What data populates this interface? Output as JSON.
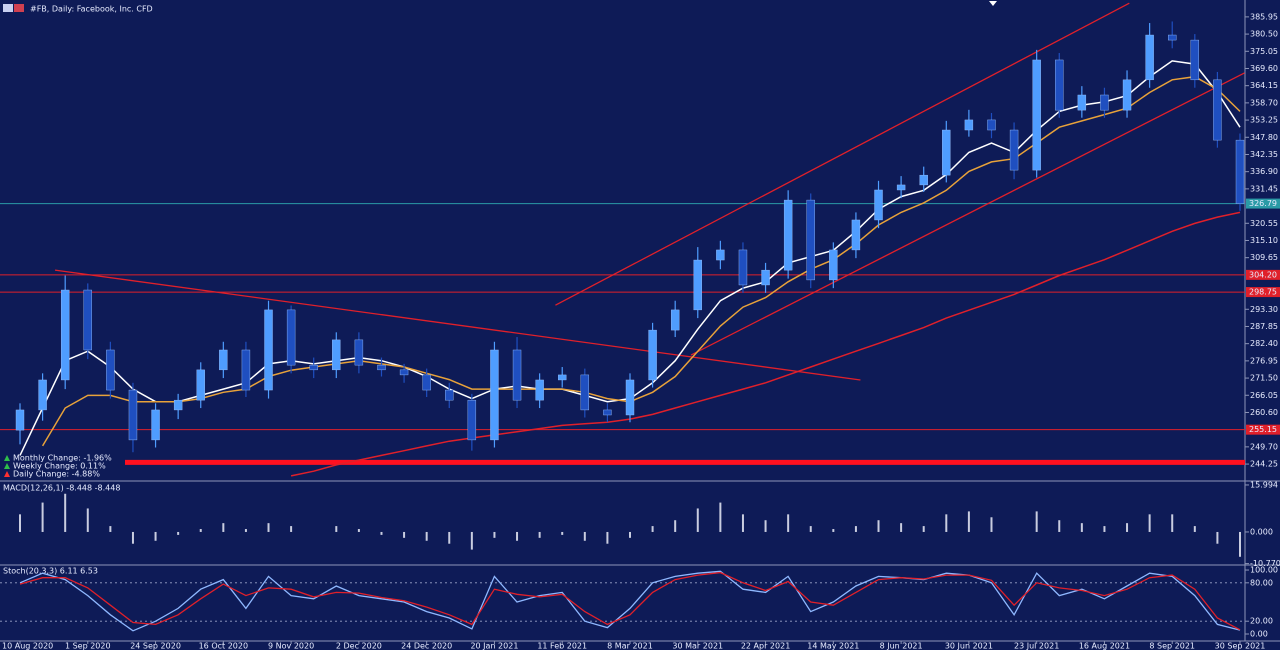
{
  "chart_data": [
    {
      "type": "candlestick",
      "title": "#FB, Daily: Facebook, Inc. CFD",
      "categories": [
        "10 Aug 2020",
        null,
        null,
        "1 Sep 2020",
        null,
        null,
        "24 Sep 2020",
        null,
        null,
        "16 Oct 2020",
        null,
        null,
        "9 Nov 2020",
        null,
        null,
        "2 Dec 2020",
        null,
        null,
        "24 Dec 2020",
        null,
        null,
        "20 Jan 2021",
        null,
        null,
        "11 Feb 2021",
        null,
        null,
        "8 Mar 2021",
        null,
        null,
        "30 Mar 2021",
        null,
        null,
        "22 Apr 2021",
        null,
        null,
        "14 May 2021",
        null,
        null,
        "8 Jun 2021",
        null,
        null,
        "30 Jun 2021",
        null,
        null,
        "23 Jul 2021",
        null,
        null,
        "16 Aug 2021",
        null,
        null,
        "8 Sep 2021",
        null,
        null,
        "30 Sep 2021"
      ],
      "open": [
        255.0,
        261.4,
        270.9,
        299.4,
        280.4,
        267.7,
        251.9,
        261.4,
        264.5,
        274.1,
        280.4,
        267.7,
        293.1,
        275.6,
        274.1,
        283.6,
        275.6,
        274.1,
        272.5,
        267.7,
        264.5,
        251.9,
        280.4,
        264.5,
        270.9,
        272.5,
        261.4,
        259.8,
        270.9,
        286.7,
        293.1,
        308.9,
        312.1,
        301.0,
        305.7,
        327.9,
        302.6,
        312.1,
        321.6,
        331.1,
        332.7,
        335.8,
        350.1,
        353.3,
        350.1,
        337.4,
        372.3,
        356.4,
        361.2,
        356.4,
        366.0,
        380.2,
        378.6,
        366.0,
        346.9
      ],
      "high": [
        263.5,
        273.0,
        304.0,
        301.5,
        283.0,
        270.0,
        263.5,
        266.5,
        276.5,
        283.0,
        283.0,
        296.0,
        294.5,
        278.0,
        286.0,
        286.0,
        278.0,
        276.0,
        274.5,
        270.0,
        266.5,
        283.0,
        284.5,
        273.0,
        275.0,
        274.5,
        263.5,
        273.0,
        289.0,
        296.0,
        313.0,
        315.0,
        314.5,
        308.0,
        331.0,
        330.0,
        314.5,
        324.0,
        334.0,
        335.5,
        338.5,
        353.0,
        356.5,
        355.5,
        352.5,
        375.5,
        374.5,
        364.0,
        363.5,
        369.0,
        384.0,
        384.5,
        380.5,
        368.5,
        349.0
      ],
      "low": [
        250.5,
        258.0,
        268.0,
        277.5,
        265.0,
        248.0,
        249.5,
        258.5,
        262.0,
        271.5,
        265.5,
        265.0,
        273.0,
        271.5,
        271.5,
        273.0,
        272.0,
        270.0,
        265.5,
        262.0,
        248.5,
        249.5,
        262.0,
        262.0,
        268.5,
        259.0,
        257.5,
        257.5,
        268.5,
        284.5,
        290.5,
        306.0,
        298.5,
        298.5,
        303.0,
        300.0,
        300.0,
        309.5,
        319.0,
        328.5,
        330.5,
        333.5,
        348.0,
        347.5,
        334.5,
        335.0,
        354.0,
        354.0,
        354.0,
        354.0,
        363.5,
        376.0,
        363.5,
        344.5,
        324.5
      ],
      "close": [
        261.4,
        270.9,
        299.4,
        280.4,
        267.7,
        251.9,
        261.4,
        264.5,
        274.1,
        280.4,
        267.7,
        293.1,
        275.6,
        274.1,
        283.6,
        275.6,
        274.1,
        272.5,
        267.7,
        264.5,
        251.9,
        280.4,
        264.5,
        270.9,
        272.5,
        261.4,
        259.8,
        270.9,
        286.7,
        293.1,
        308.9,
        312.1,
        301.0,
        305.7,
        327.9,
        302.6,
        312.1,
        321.6,
        331.1,
        332.7,
        335.8,
        350.1,
        353.3,
        350.1,
        337.4,
        372.3,
        356.4,
        361.2,
        356.4,
        366.0,
        380.2,
        378.6,
        366.0,
        346.9,
        326.79
      ],
      "up_color": "#4f9dff",
      "down_color": "#1f4fc0",
      "series": [
        {
          "color": "#ffffff",
          "values": [
            247,
            262,
            277,
            280,
            275,
            268,
            264,
            264,
            266,
            268,
            270,
            276,
            277,
            276,
            277,
            278,
            277,
            275,
            272,
            268,
            265,
            268,
            269,
            268,
            268,
            266,
            264,
            265,
            270,
            277,
            287,
            296,
            300,
            302,
            308,
            310,
            312,
            318,
            325,
            329,
            331,
            336,
            343,
            346,
            343,
            350,
            356,
            358,
            359,
            361,
            367,
            372,
            371,
            362,
            351
          ]
        },
        {
          "color": "#e8a23a",
          "values": [
            null,
            250,
            262,
            266,
            266,
            264,
            264,
            264,
            265,
            267,
            268,
            272,
            274,
            275,
            276,
            277,
            276,
            275,
            273,
            271,
            268,
            268,
            268,
            268,
            268,
            267,
            265,
            264,
            267,
            272,
            280,
            288,
            294,
            297,
            302,
            306,
            309,
            314,
            320,
            324,
            327,
            331,
            337,
            340,
            341,
            346,
            351,
            353,
            355,
            357,
            362,
            366,
            367,
            363,
            356
          ]
        },
        {
          "color": "#e0202a",
          "values": [
            null,
            null,
            null,
            null,
            null,
            null,
            null,
            null,
            null,
            null,
            null,
            null,
            240.5,
            242,
            244,
            245.5,
            247,
            248.5,
            250,
            251.5,
            252.5,
            253.5,
            254.5,
            255.5,
            256.5,
            257,
            257.5,
            258.5,
            260,
            262,
            264,
            266,
            268,
            270,
            272.5,
            275,
            277.5,
            280,
            282.5,
            285,
            287.5,
            290.5,
            293,
            295.5,
            298,
            301,
            304,
            306.5,
            309,
            312,
            315,
            318,
            320.5,
            322.5,
            324
          ]
        }
      ],
      "trendlines": [
        {
          "color": "#e0202a",
          "x": [
            23.7,
            49.1
          ],
          "y": [
            294.6,
            390.3
          ]
        },
        {
          "color": "#e0202a",
          "x": [
            29.7,
            54.2
          ],
          "y": [
            278.8,
            368.2
          ]
        },
        {
          "color": "#e0202a",
          "x": [
            1.55,
            37.2
          ],
          "y": [
            305.7,
            270.9
          ]
        }
      ],
      "levels": [
        {
          "value": 304.2,
          "label": "304.20",
          "color": "#e0202a"
        },
        {
          "value": 298.75,
          "label": "298.75",
          "color": "#e0202a"
        },
        {
          "value": 255.15,
          "label": "255.15",
          "color": "#e0202a"
        }
      ],
      "support": {
        "value": 244.8,
        "color": "#ff1020"
      },
      "current_price": {
        "value": 326.79,
        "color": "#2a9aa6"
      },
      "annotations": [
        {
          "text": "Monthly Change: -1.96%",
          "color": "#2fbf4a"
        },
        {
          "text": "Weekly Change: 0.11%",
          "color": "#2fbf4a"
        },
        {
          "text": "Daily Change: -4.88%",
          "color": "#ff3030"
        }
      ],
      "ylim": [
        239.2,
        391.3
      ],
      "yticks": [
        385.95,
        {
          "value": 380.5,
          "label": "380.50"
        },
        375.05,
        {
          "value": 369.6,
          "label": "369.60"
        },
        364.15,
        {
          "value": 358.7,
          "label": "358.70"
        },
        353.25,
        {
          "value": 347.8,
          "label": "347.80"
        },
        342.35,
        {
          "value": 336.9,
          "label": "336.90"
        },
        331.45,
        320.55,
        {
          "value": 315.1,
          "label": "315.10"
        },
        309.65,
        {
          "value": 293.3,
          "label": "293.30"
        },
        287.85,
        {
          "value": 282.4,
          "label": "282.40"
        },
        276.95,
        {
          "value": 271.5,
          "label": "271.50"
        },
        266.05,
        {
          "value": 260.6,
          "label": "260.60"
        },
        {
          "value": 249.7,
          "label": "249.70"
        },
        244.25
      ]
    },
    {
      "type": "bar",
      "title": "MACD(12,26,1) -8.448 -8.448",
      "color": "#c9cde0",
      "values": [
        6,
        10,
        13,
        8,
        2,
        -4,
        -3,
        -1,
        1,
        3,
        1,
        3,
        2,
        0,
        2,
        1,
        -1,
        -2,
        -3,
        -4,
        -6,
        -2,
        -3,
        -2,
        -1,
        -3,
        -4,
        -2,
        2,
        4,
        8,
        10,
        6,
        4,
        6,
        2,
        1,
        2,
        4,
        3,
        2,
        6,
        7,
        5,
        0,
        7,
        4,
        3,
        2,
        3,
        6,
        6,
        2,
        -4,
        -8.448
      ],
      "ylim": [
        -10.9,
        17.0
      ],
      "yticks": [
        15.994,
        {
          "value": 0,
          "label": "0.000"
        },
        {
          "value": -10.77,
          "label": "-10.770"
        }
      ]
    },
    {
      "type": "line",
      "title": "Stoch(20,3,3) 6.11 6.53",
      "series": [
        {
          "color": "#8fb8ff",
          "values": [
            80,
            95,
            85,
            60,
            30,
            5,
            20,
            40,
            70,
            85,
            40,
            90,
            60,
            55,
            75,
            60,
            55,
            50,
            35,
            25,
            8,
            90,
            50,
            60,
            65,
            20,
            10,
            40,
            80,
            90,
            95,
            98,
            70,
            65,
            90,
            35,
            50,
            75,
            90,
            88,
            85,
            95,
            92,
            80,
            30,
            95,
            60,
            70,
            55,
            75,
            95,
            90,
            60,
            15,
            6.11
          ]
        },
        {
          "color": "#e0202a",
          "values": [
            78,
            88,
            88,
            72,
            45,
            18,
            15,
            30,
            55,
            78,
            60,
            72,
            70,
            58,
            65,
            64,
            57,
            52,
            42,
            30,
            15,
            70,
            62,
            58,
            62,
            35,
            15,
            30,
            65,
            85,
            92,
            96,
            80,
            68,
            82,
            50,
            45,
            65,
            85,
            88,
            86,
            92,
            92,
            84,
            45,
            80,
            72,
            68,
            60,
            70,
            88,
            92,
            70,
            25,
            6.53
          ]
        }
      ],
      "levels": [
        80,
        20
      ],
      "ylim": [
        -9.4,
        106.3
      ],
      "yticks": [
        {
          "value": 100,
          "label": "100.00"
        },
        {
          "value": 80,
          "label": "80.00"
        },
        {
          "value": 20,
          "label": "20.00"
        },
        {
          "value": 0,
          "label": "0.00"
        }
      ]
    }
  ]
}
